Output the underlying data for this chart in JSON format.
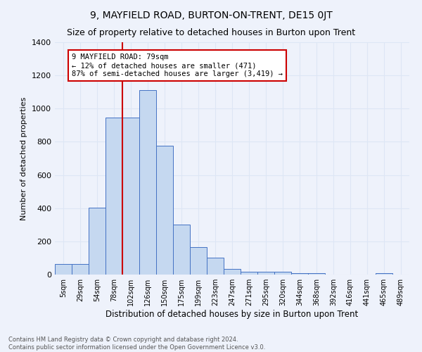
{
  "title": "9, MAYFIELD ROAD, BURTON-ON-TRENT, DE15 0JT",
  "subtitle": "Size of property relative to detached houses in Burton upon Trent",
  "xlabel": "Distribution of detached houses by size in Burton upon Trent",
  "ylabel": "Number of detached properties",
  "footnote1": "Contains HM Land Registry data © Crown copyright and database right 2024.",
  "footnote2": "Contains public sector information licensed under the Open Government Licence v3.0.",
  "bar_labels": [
    "5sqm",
    "29sqm",
    "54sqm",
    "78sqm",
    "102sqm",
    "126sqm",
    "150sqm",
    "175sqm",
    "199sqm",
    "223sqm",
    "247sqm",
    "271sqm",
    "295sqm",
    "320sqm",
    "344sqm",
    "368sqm",
    "392sqm",
    "416sqm",
    "441sqm",
    "465sqm",
    "489sqm"
  ],
  "bar_values": [
    65,
    65,
    405,
    945,
    945,
    1110,
    775,
    300,
    165,
    100,
    33,
    15,
    15,
    15,
    10,
    10,
    0,
    0,
    0,
    10,
    0
  ],
  "bar_color": "#c5d8f0",
  "bar_edge_color": "#4472c4",
  "grid_color": "#dde6f5",
  "vline_x": 3.5,
  "vline_color": "#cc0000",
  "annotation_text": "9 MAYFIELD ROAD: 79sqm\n← 12% of detached houses are smaller (471)\n87% of semi-detached houses are larger (3,419) →",
  "annotation_box_color": "#ffffff",
  "annotation_box_edge": "#cc0000",
  "ylim": [
    0,
    1400
  ],
  "yticks": [
    0,
    200,
    400,
    600,
    800,
    1000,
    1200,
    1400
  ],
  "background_color": "#eef2fb",
  "title_fontsize": 10,
  "subtitle_fontsize": 9
}
